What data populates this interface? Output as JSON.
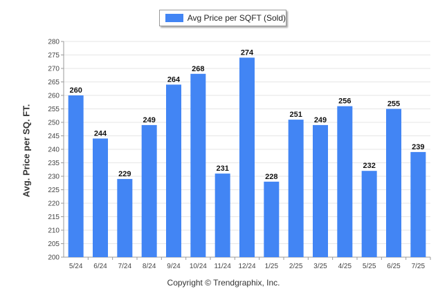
{
  "legend": {
    "label": "Avg Price per SQFT (Sold)",
    "color": "#4285f4"
  },
  "footer": {
    "copyright": "Copyright © Trendgraphix, Inc."
  },
  "chart_data": {
    "type": "bar",
    "ylabel": "Avg. Price per SQ. FT.",
    "xlabel": "",
    "ylim": [
      200,
      280
    ],
    "ytick_step": 5,
    "grid": true,
    "legend_position": "top-center",
    "bar_color": "#4285f4",
    "categories": [
      "5/24",
      "6/24",
      "7/24",
      "8/24",
      "9/24",
      "10/24",
      "11/24",
      "12/24",
      "1/25",
      "2/25",
      "3/25",
      "4/25",
      "5/25",
      "6/25",
      "7/25"
    ],
    "series": [
      {
        "name": "Avg Price per SQFT (Sold)",
        "values": [
          260,
          244,
          229,
          249,
          264,
          268,
          231,
          274,
          228,
          251,
          249,
          256,
          232,
          255,
          239
        ]
      }
    ]
  }
}
